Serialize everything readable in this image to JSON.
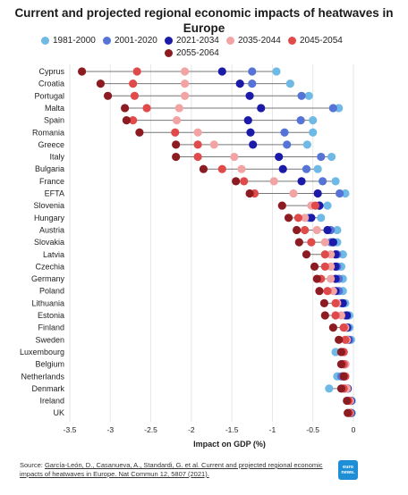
{
  "chart_data": {
    "type": "scatter",
    "title": "Current and projected regional economic impacts of heatwaves in Europe",
    "xlabel": "Impact on GDP (%)",
    "xlim": [
      -3.5,
      0
    ],
    "xticks": [
      "-3.5",
      "-3",
      "-2.5",
      "-2",
      "-1.5",
      "-1",
      "-0.5",
      "0"
    ],
    "grid": "vertical",
    "legend_position": "top",
    "series": [
      {
        "name": "1981-2000",
        "color": "#6fb9e6"
      },
      {
        "name": "2001-2020",
        "color": "#5673d6"
      },
      {
        "name": "2021-2034",
        "color": "#1c1aa8"
      },
      {
        "name": "2035-2044",
        "color": "#f2a3a3"
      },
      {
        "name": "2045-2054",
        "color": "#e04a4a"
      },
      {
        "name": "2055-2064",
        "color": "#8c1b22"
      }
    ],
    "countries": [
      {
        "name": "Cyprus",
        "values": [
          -0.95,
          -1.25,
          -1.62,
          -2.08,
          -2.67,
          -3.35
        ]
      },
      {
        "name": "Croatia",
        "values": [
          -0.78,
          -1.25,
          -1.4,
          -2.08,
          -2.72,
          -3.12
        ]
      },
      {
        "name": "Portugal",
        "values": [
          -0.55,
          -0.64,
          -1.28,
          -2.08,
          -2.7,
          -3.03
        ]
      },
      {
        "name": "Malta",
        "values": [
          -0.18,
          -0.25,
          -1.14,
          -2.15,
          -2.55,
          -2.82
        ]
      },
      {
        "name": "Spain",
        "values": [
          -0.5,
          -0.65,
          -1.3,
          -2.18,
          -2.72,
          -2.8
        ]
      },
      {
        "name": "Romania",
        "values": [
          -0.5,
          -0.85,
          -1.27,
          -1.92,
          -2.2,
          -2.64
        ]
      },
      {
        "name": "Greece",
        "values": [
          -0.57,
          -0.82,
          -1.24,
          -1.72,
          -1.92,
          -2.19
        ]
      },
      {
        "name": "Italy",
        "values": [
          -0.27,
          -0.4,
          -0.92,
          -1.47,
          -1.92,
          -2.19
        ]
      },
      {
        "name": "Bulgaria",
        "values": [
          -0.44,
          -0.58,
          -0.87,
          -1.38,
          -1.62,
          -1.85
        ]
      },
      {
        "name": "France",
        "values": [
          -0.22,
          -0.38,
          -0.64,
          -0.98,
          -1.35,
          -1.45
        ]
      },
      {
        "name": "EFTA",
        "values": [
          -0.1,
          -0.17,
          -0.44,
          -0.74,
          -1.22,
          -1.28
        ]
      },
      {
        "name": "Slovenia",
        "values": [
          -0.32,
          -0.42,
          -0.42,
          -0.52,
          -0.47,
          -0.88
        ]
      },
      {
        "name": "Hungary",
        "values": [
          -0.4,
          -0.55,
          -0.52,
          -0.6,
          -0.68,
          -0.8
        ]
      },
      {
        "name": "Austria",
        "values": [
          -0.2,
          -0.28,
          -0.32,
          -0.45,
          -0.6,
          -0.7
        ]
      },
      {
        "name": "Slovakia",
        "values": [
          -0.2,
          -0.28,
          -0.25,
          -0.35,
          -0.52,
          -0.67
        ]
      },
      {
        "name": "Latvia",
        "values": [
          -0.13,
          -0.2,
          -0.22,
          -0.28,
          -0.35,
          -0.58
        ]
      },
      {
        "name": "Czechia",
        "values": [
          -0.15,
          -0.2,
          -0.22,
          -0.28,
          -0.35,
          -0.48
        ]
      },
      {
        "name": "Germany",
        "values": [
          -0.13,
          -0.18,
          -0.22,
          -0.28,
          -0.4,
          -0.45
        ]
      },
      {
        "name": "Poland",
        "values": [
          -0.13,
          -0.18,
          -0.22,
          -0.25,
          -0.32,
          -0.42
        ]
      },
      {
        "name": "Lithuania",
        "values": [
          -0.1,
          -0.15,
          -0.13,
          -0.2,
          -0.22,
          -0.36
        ]
      },
      {
        "name": "Estonia",
        "values": [
          -0.05,
          -0.1,
          -0.08,
          -0.15,
          -0.22,
          -0.35
        ]
      },
      {
        "name": "Finland",
        "values": [
          -0.05,
          -0.07,
          -0.08,
          -0.1,
          -0.12,
          -0.25
        ]
      },
      {
        "name": "Sweden",
        "values": [
          -0.03,
          -0.05,
          -0.07,
          -0.08,
          -0.1,
          -0.18
        ]
      },
      {
        "name": "Luxembourg",
        "values": [
          -0.22,
          -0.15,
          -0.12,
          -0.12,
          -0.12,
          -0.15
        ]
      },
      {
        "name": "Belgium",
        "values": [
          -0.12,
          -0.13,
          -0.1,
          -0.1,
          -0.12,
          -0.15
        ]
      },
      {
        "name": "Netherlands",
        "values": [
          -0.2,
          -0.15,
          -0.12,
          -0.12,
          -0.1,
          -0.12
        ]
      },
      {
        "name": "Denmark",
        "values": [
          -0.3,
          -0.1,
          -0.07,
          -0.08,
          -0.12,
          -0.15
        ]
      },
      {
        "name": "Ireland",
        "values": [
          -0.02,
          -0.03,
          -0.03,
          -0.04,
          -0.06,
          -0.08
        ]
      },
      {
        "name": "UK",
        "values": [
          -0.02,
          -0.03,
          -0.03,
          -0.04,
          -0.05,
          -0.07
        ]
      }
    ]
  },
  "source": {
    "prefix": "Source: ",
    "link_text": "García-León, D., Casanueva, A., Standardi, G. et al. Current and projected regional economic impacts of heatwaves in Europe. Nat Commun 12, 5807 (2021)."
  },
  "logo": {
    "text": "euro news."
  }
}
